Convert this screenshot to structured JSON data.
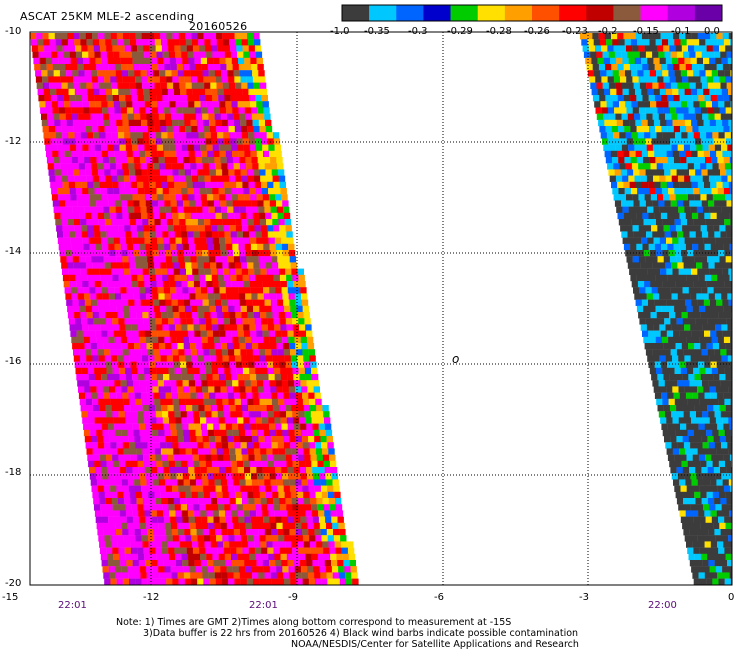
{
  "title": "ASCAT 25KM MLE-2 ascending",
  "date": "20160526",
  "colorbar": {
    "labels": [
      "-1.0",
      "-0.35",
      "-0.3",
      "-0.29",
      "-0.28",
      "-0.26",
      "-0.23",
      "-0.2",
      "-0.15",
      "-0.1",
      "0.0"
    ],
    "colors": [
      "#3c3c3c",
      "#00c8ff",
      "#0064ff",
      "#0000cc",
      "#00cc00",
      "#ffe000",
      "#ffa000",
      "#ff5000",
      "#ff0000",
      "#c00000",
      "#8b5a3c",
      "#ff00ff",
      "#b000e0",
      "#6a00a8"
    ]
  },
  "axes": {
    "y_ticks": [
      "-10",
      "-12",
      "-14",
      "-16",
      "-18",
      "-20"
    ],
    "x_ticks": [
      "-15",
      "-12",
      "-9",
      "-6",
      "-3",
      "0"
    ],
    "y_range": [
      -20,
      -10
    ],
    "x_range": [
      -15,
      0
    ]
  },
  "center_label": "o",
  "swath_times": [
    "22:01",
    "22:01",
    "22:00"
  ],
  "notes": [
    "Note: 1) Times are GMT 2)Times along bottom correspond to measurement at -15S",
    "3)Data buffer is 22 hrs from 20160526 4) Black wind barbs indicate possible contamination",
    "NOAA/NESDIS/Center for Satellite Applications and Research"
  ]
}
